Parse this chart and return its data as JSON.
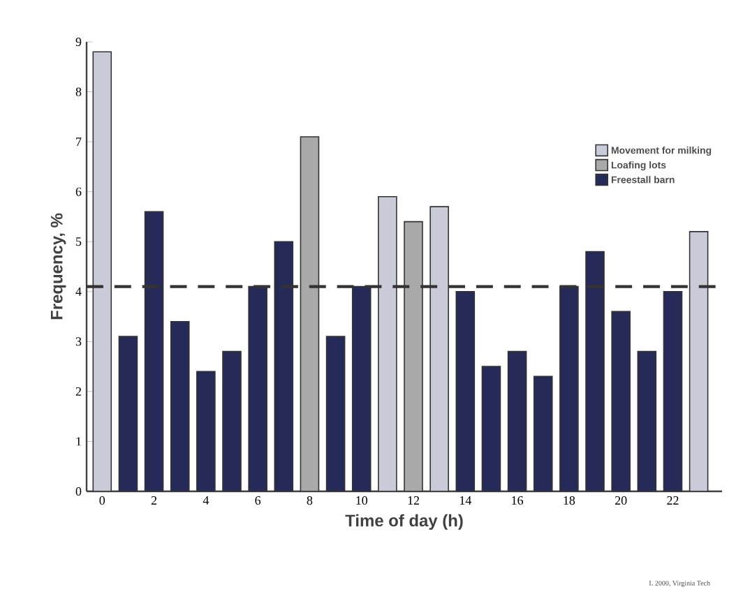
{
  "chart_data": {
    "type": "bar",
    "xlabel": "Time of day (h)",
    "ylabel": "Frequency, %",
    "categories": [
      "0",
      null,
      "2",
      null,
      "4",
      null,
      "6",
      null,
      "8",
      null,
      "10",
      null,
      "12",
      null,
      "14",
      null,
      "16",
      null,
      "18",
      null,
      "20",
      null,
      "22",
      null
    ],
    "series": [
      {
        "name": "Movement for milking",
        "color": "#c9ccd8",
        "values": [
          8.8,
          null,
          null,
          null,
          null,
          null,
          null,
          null,
          null,
          null,
          null,
          5.9,
          null,
          5.7,
          null,
          null,
          null,
          null,
          null,
          null,
          null,
          null,
          null,
          5.2
        ]
      },
      {
        "name": "Loafing lots",
        "color": "#a9a9a9",
        "values": [
          null,
          null,
          null,
          null,
          null,
          null,
          null,
          null,
          7.1,
          null,
          null,
          null,
          5.4,
          null,
          null,
          null,
          null,
          null,
          null,
          null,
          null,
          null,
          null,
          null
        ]
      },
      {
        "name": "Freestall barn",
        "color": "#262a58",
        "values": [
          null,
          3.1,
          5.6,
          3.4,
          2.4,
          2.8,
          4.1,
          5.0,
          null,
          3.1,
          4.1,
          null,
          null,
          null,
          4.0,
          2.5,
          2.8,
          2.3,
          4.1,
          4.8,
          3.6,
          2.8,
          4.0,
          null
        ]
      }
    ],
    "ylim": [
      0,
      9
    ],
    "yticks": [
      0,
      1,
      2,
      3,
      4,
      5,
      6,
      7,
      8,
      9
    ],
    "ref_lines": [
      {
        "axis": "y",
        "value": 4.1,
        "color": "#333333",
        "line_style": "dashed"
      }
    ],
    "legend": "right",
    "annotations": [
      "L 2000, Virginia Tech"
    ]
  }
}
